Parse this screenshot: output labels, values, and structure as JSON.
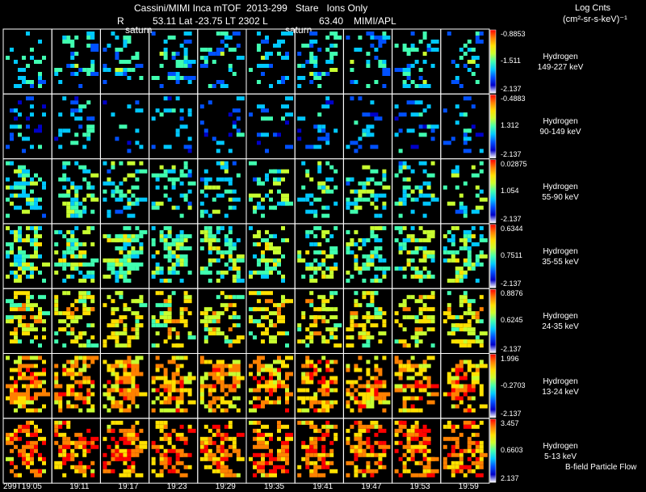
{
  "header": {
    "title": "Cassini/MIMI Inca mTOF  2013-299   Stare   Ions Only",
    "info_r": "R",
    "info_values": "53.11 Lat -23.75 LT 2302 L",
    "info_l_value": "63.40",
    "info_org": "MIMI/APL",
    "saturn_marker": "saturn",
    "units_line1": "Log Cnts",
    "units_line2": "(cm²-sr-s-keV)⁻¹"
  },
  "footer": {
    "flow_label": "B-field Particle Flow",
    "time_labels": [
      "299T19:05",
      "19:11",
      "19:17",
      "19:23",
      "19:29",
      "19:35",
      "19:41",
      "19:47",
      "19:53",
      "19:59"
    ]
  },
  "colorscale": [
    "#ffffff",
    "#0000c8",
    "#0050ff",
    "#00c8ff",
    "#40ffb0",
    "#c8ff30",
    "#ffe000",
    "#ff8000",
    "#ff0000"
  ],
  "rows": [
    {
      "species": "Hydrogen",
      "energy": "149-227 keV",
      "scale_max": "-0.8853",
      "scale_mid": "-1.511",
      "scale_min": "-2.137",
      "level": 0.28,
      "density": 0.18
    },
    {
      "species": "Hydrogen",
      "energy": "90-149 keV",
      "scale_max": "-0.4883",
      "scale_mid": "1.312",
      "scale_min": "-2.137",
      "level": 0.18,
      "density": 0.12
    },
    {
      "species": "Hydrogen",
      "energy": "55-90 keV",
      "scale_max": "0.02875",
      "scale_mid": "1.054",
      "scale_min": "-2.137",
      "level": 0.35,
      "density": 0.22
    },
    {
      "species": "Hydrogen",
      "energy": "35-55 keV",
      "scale_max": "0.6344",
      "scale_mid": "0.7511",
      "scale_min": "-2.137",
      "level": 0.42,
      "density": 0.32
    },
    {
      "species": "Hydrogen",
      "energy": "24-35 keV",
      "scale_max": "0.8876",
      "scale_mid": "0.6245",
      "scale_min": "-2.137",
      "level": 0.55,
      "density": 0.28
    },
    {
      "species": "Hydrogen",
      "energy": "13-24 keV",
      "scale_max": "1.996",
      "scale_mid": "-0.2703",
      "scale_min": "-2.137",
      "level": 0.68,
      "density": 0.38
    },
    {
      "species": "Hydrogen",
      "energy": "5-13 keV",
      "scale_max": "3.457",
      "scale_mid": "0.6603",
      "scale_min": "2.137",
      "level": 0.75,
      "density": 0.36
    }
  ]
}
